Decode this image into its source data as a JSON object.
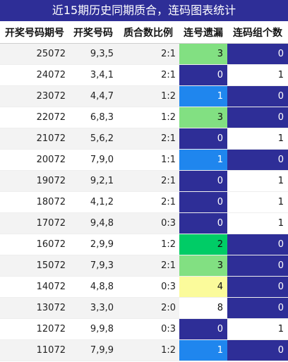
{
  "title": "近15期历史同期质合，连码图表统计",
  "headers": [
    "开奖号码期号",
    "开奖号码",
    "质合数比例",
    "连号遗漏",
    "连码组个数"
  ],
  "colors": {
    "header_bg": "#2e2e97",
    "dark_blue": "#2e2e97",
    "blue": "#1f86ee",
    "light_green": "#82e082",
    "green": "#00cc66",
    "yellow": "#fbfb9b",
    "white": "#ffffff"
  },
  "rows": [
    {
      "issue": "25072",
      "numbers": "9,3,5",
      "ratio": "2:1",
      "miss": "3",
      "miss_color": "light_green",
      "group": "0",
      "group_color": "dark_blue"
    },
    {
      "issue": "24072",
      "numbers": "3,4,1",
      "ratio": "2:1",
      "miss": "0",
      "miss_color": "dark_blue",
      "group": "1",
      "group_color": "white"
    },
    {
      "issue": "23072",
      "numbers": "4,4,7",
      "ratio": "1:2",
      "miss": "1",
      "miss_color": "blue",
      "group": "0",
      "group_color": "dark_blue"
    },
    {
      "issue": "22072",
      "numbers": "6,8,3",
      "ratio": "1:2",
      "miss": "3",
      "miss_color": "light_green",
      "group": "0",
      "group_color": "dark_blue"
    },
    {
      "issue": "21072",
      "numbers": "5,6,2",
      "ratio": "2:1",
      "miss": "0",
      "miss_color": "dark_blue",
      "group": "1",
      "group_color": "white"
    },
    {
      "issue": "20072",
      "numbers": "7,9,0",
      "ratio": "1:1",
      "miss": "1",
      "miss_color": "blue",
      "group": "0",
      "group_color": "dark_blue"
    },
    {
      "issue": "19072",
      "numbers": "9,2,1",
      "ratio": "2:1",
      "miss": "0",
      "miss_color": "dark_blue",
      "group": "1",
      "group_color": "white"
    },
    {
      "issue": "18072",
      "numbers": "4,1,2",
      "ratio": "2:1",
      "miss": "0",
      "miss_color": "dark_blue",
      "group": "1",
      "group_color": "white"
    },
    {
      "issue": "17072",
      "numbers": "9,4,8",
      "ratio": "0:3",
      "miss": "0",
      "miss_color": "dark_blue",
      "group": "1",
      "group_color": "white"
    },
    {
      "issue": "16072",
      "numbers": "2,9,9",
      "ratio": "1:2",
      "miss": "2",
      "miss_color": "green",
      "group": "0",
      "group_color": "dark_blue"
    },
    {
      "issue": "15072",
      "numbers": "7,9,3",
      "ratio": "2:1",
      "miss": "3",
      "miss_color": "light_green",
      "group": "0",
      "group_color": "dark_blue"
    },
    {
      "issue": "14072",
      "numbers": "4,8,8",
      "ratio": "0:3",
      "miss": "4",
      "miss_color": "yellow",
      "group": "0",
      "group_color": "dark_blue"
    },
    {
      "issue": "13072",
      "numbers": "3,3,0",
      "ratio": "2:0",
      "miss": "8",
      "miss_color": "white",
      "group": "0",
      "group_color": "dark_blue"
    },
    {
      "issue": "12072",
      "numbers": "9,9,8",
      "ratio": "0:3",
      "miss": "0",
      "miss_color": "dark_blue",
      "group": "1",
      "group_color": "white"
    },
    {
      "issue": "11072",
      "numbers": "7,9,9",
      "ratio": "1:2",
      "miss": "1",
      "miss_color": "blue",
      "group": "0",
      "group_color": "dark_blue"
    }
  ]
}
